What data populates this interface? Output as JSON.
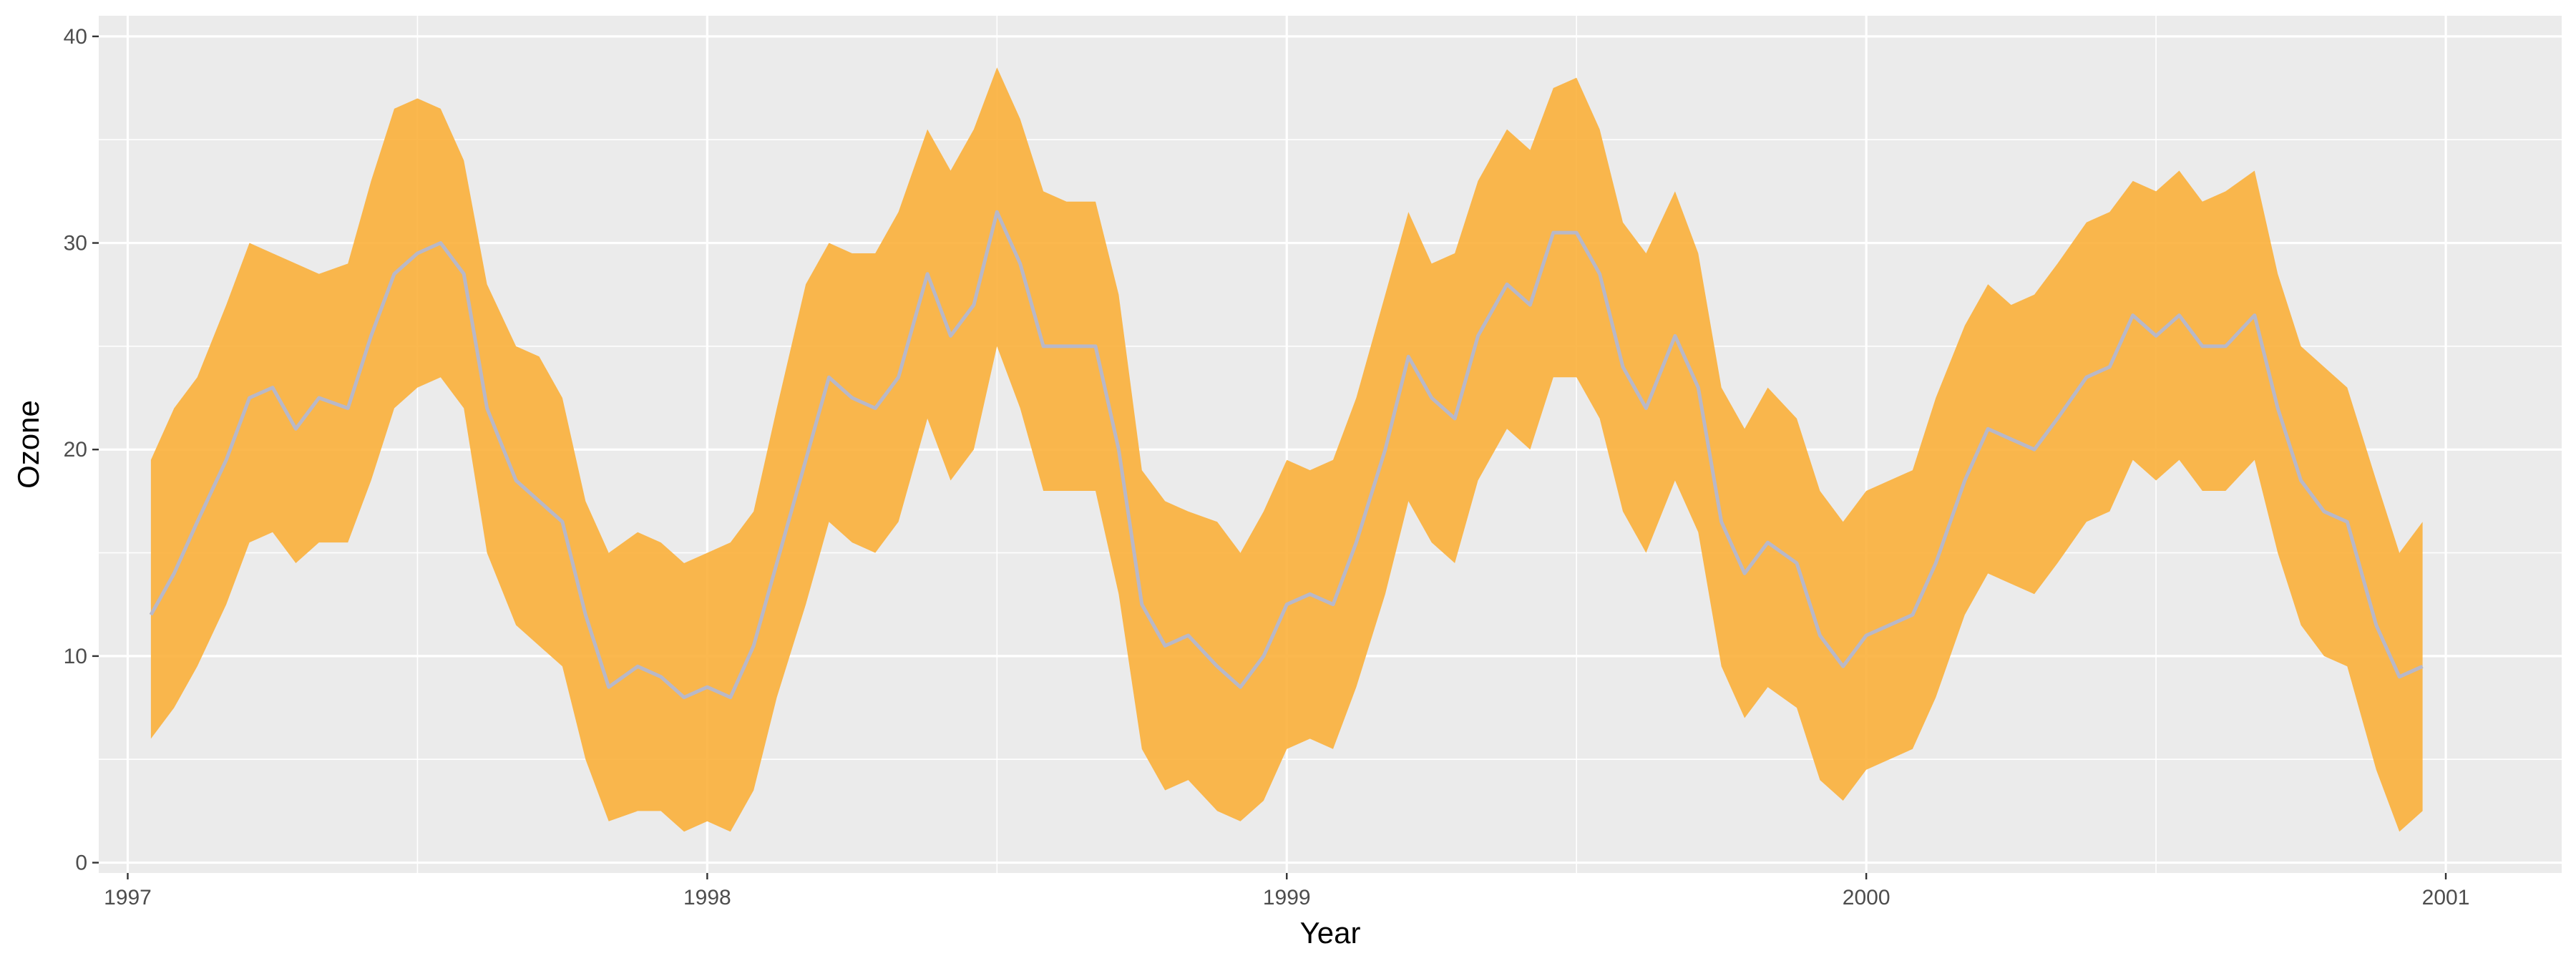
{
  "chart_data": {
    "type": "area",
    "title": "",
    "xlabel": "Year",
    "ylabel": "Ozone",
    "xlim": [
      1996.95,
      2001.2
    ],
    "ylim": [
      -0.5,
      41
    ],
    "x_ticks": [
      1997,
      1998,
      1999,
      2000,
      2001
    ],
    "y_ticks": [
      0,
      10,
      20,
      30,
      40
    ],
    "grid": true,
    "legend": "none",
    "colors": {
      "panel": "#ebebeb",
      "grid_major": "#ffffff",
      "band": "#fbb03b",
      "line": "#b8b8c8",
      "tick_text": "#4d4d4d"
    },
    "x": [
      1997.04,
      1997.08,
      1997.12,
      1997.17,
      1997.21,
      1997.25,
      1997.29,
      1997.33,
      1997.38,
      1997.42,
      1997.46,
      1997.5,
      1997.54,
      1997.58,
      1997.62,
      1997.67,
      1997.71,
      1997.75,
      1997.79,
      1997.83,
      1997.88,
      1997.92,
      1997.96,
      1998.0,
      1998.04,
      1998.08,
      1998.12,
      1998.17,
      1998.21,
      1998.25,
      1998.29,
      1998.33,
      1998.38,
      1998.42,
      1998.46,
      1998.5,
      1998.54,
      1998.58,
      1998.62,
      1998.67,
      1998.71,
      1998.75,
      1998.79,
      1998.83,
      1998.88,
      1998.92,
      1998.96,
      1999.0,
      1999.04,
      1999.08,
      1999.12,
      1999.17,
      1999.21,
      1999.25,
      1999.29,
      1999.33,
      1999.38,
      1999.42,
      1999.46,
      1999.5,
      1999.54,
      1999.58,
      1999.62,
      1999.67,
      1999.71,
      1999.75,
      1999.79,
      1999.83,
      1999.88,
      1999.92,
      1999.96,
      2000.0,
      2000.04,
      2000.08,
      2000.12,
      2000.17,
      2000.21,
      2000.25,
      2000.29,
      2000.33,
      2000.38,
      2000.42,
      2000.46,
      2000.5,
      2000.54,
      2000.58,
      2000.62,
      2000.67,
      2000.71,
      2000.75,
      2000.79,
      2000.83,
      2000.88,
      2000.92,
      2000.96
    ],
    "series": [
      {
        "values": [
          12.0,
          14.0,
          16.5,
          19.5,
          22.5,
          23.0,
          21.0,
          22.5,
          22.0,
          25.5,
          28.5,
          29.5,
          30.0,
          28.5,
          22.0,
          18.5,
          17.5,
          16.5,
          12.0,
          8.5,
          9.5,
          9.0,
          8.0,
          8.5,
          8.0,
          10.5,
          14.5,
          19.5,
          23.5,
          22.5,
          22.0,
          23.5,
          28.5,
          25.5,
          27.0,
          31.5,
          29.0,
          25.0,
          25.0,
          25.0,
          20.0,
          12.5,
          10.5,
          11.0,
          9.5,
          8.5,
          10.0,
          12.5,
          13.0,
          12.5,
          15.5,
          20.0,
          24.5,
          22.5,
          21.5,
          25.5,
          28.0,
          27.0,
          30.5,
          30.5,
          28.5,
          24.0,
          22.0,
          25.5,
          23.0,
          16.5,
          14.0,
          15.5,
          14.5,
          11.0,
          9.5,
          11.0,
          11.5,
          12.0,
          14.5,
          18.5,
          21.0,
          20.5,
          20.0,
          21.5,
          23.5,
          24.0,
          26.5,
          25.5,
          26.5,
          25.0,
          25.0,
          26.5,
          22.0,
          18.5,
          17.0,
          16.5,
          11.5,
          9.0,
          9.5
        ]
      }
    ],
    "band_upper": [
      19.5,
      22.0,
      23.5,
      27.0,
      30.0,
      29.5,
      29.0,
      28.5,
      29.0,
      33.0,
      36.5,
      37.0,
      36.5,
      34.0,
      28.0,
      25.0,
      24.5,
      22.5,
      17.5,
      15.0,
      16.0,
      15.5,
      14.5,
      15.0,
      15.5,
      17.0,
      22.0,
      28.0,
      30.0,
      29.5,
      29.5,
      31.5,
      35.5,
      33.5,
      35.5,
      38.5,
      36.0,
      32.5,
      32.0,
      32.0,
      27.5,
      19.0,
      17.5,
      17.0,
      16.5,
      15.0,
      17.0,
      19.5,
      19.0,
      19.5,
      22.5,
      27.5,
      31.5,
      29.0,
      29.5,
      33.0,
      35.5,
      34.5,
      37.5,
      38.0,
      35.5,
      31.0,
      29.5,
      32.5,
      29.5,
      23.0,
      21.0,
      23.0,
      21.5,
      18.0,
      16.5,
      18.0,
      18.5,
      19.0,
      22.5,
      26.0,
      28.0,
      27.0,
      27.5,
      29.0,
      31.0,
      31.5,
      33.0,
      32.5,
      33.5,
      32.0,
      32.5,
      33.5,
      28.5,
      25.0,
      24.0,
      23.0,
      18.5,
      15.0,
      16.5
    ],
    "band_lower": [
      6.0,
      7.5,
      9.5,
      12.5,
      15.5,
      16.0,
      14.5,
      15.5,
      15.5,
      18.5,
      22.0,
      23.0,
      23.5,
      22.0,
      15.0,
      11.5,
      10.5,
      9.5,
      5.0,
      2.0,
      2.5,
      2.5,
      1.5,
      2.0,
      1.5,
      3.5,
      8.0,
      12.5,
      16.5,
      15.5,
      15.0,
      16.5,
      21.5,
      18.5,
      20.0,
      25.0,
      22.0,
      18.0,
      18.0,
      18.0,
      13.0,
      5.5,
      3.5,
      4.0,
      2.5,
      2.0,
      3.0,
      5.5,
      6.0,
      5.5,
      8.5,
      13.0,
      17.5,
      15.5,
      14.5,
      18.5,
      21.0,
      20.0,
      23.5,
      23.5,
      21.5,
      17.0,
      15.0,
      18.5,
      16.0,
      9.5,
      7.0,
      8.5,
      7.5,
      4.0,
      3.0,
      4.5,
      5.0,
      5.5,
      8.0,
      12.0,
      14.0,
      13.5,
      13.0,
      14.5,
      16.5,
      17.0,
      19.5,
      18.5,
      19.5,
      18.0,
      18.0,
      19.5,
      15.0,
      11.5,
      10.0,
      9.5,
      4.5,
      1.5,
      2.5
    ]
  }
}
